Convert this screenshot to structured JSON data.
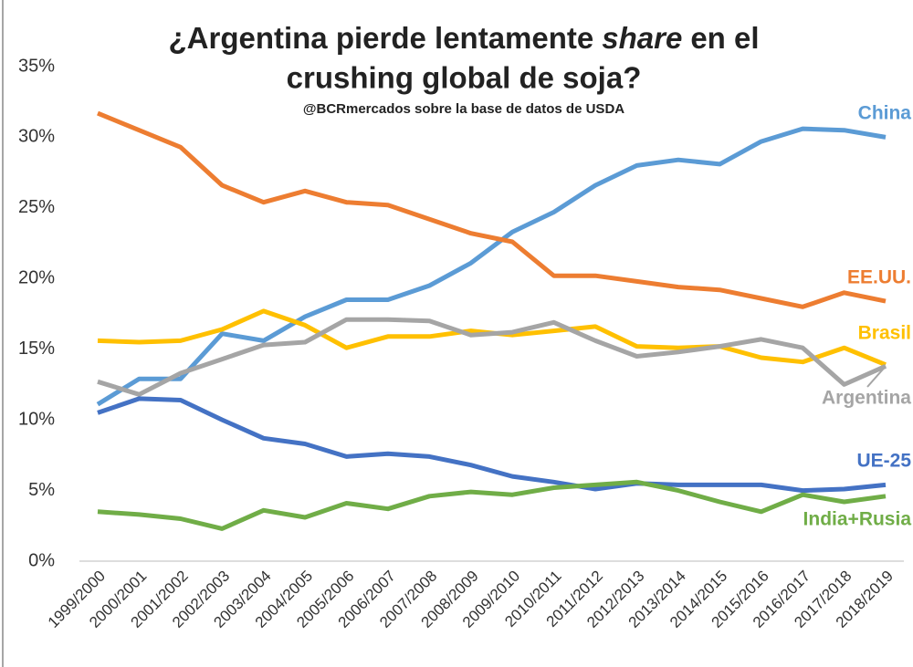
{
  "chart_data": {
    "type": "line",
    "title": [
      "¿Argentina pierde lentamente",
      "share",
      "en el",
      "crushing global de soja?"
    ],
    "subtitle": "@BCRmercados sobre la base de datos de USDA",
    "categories": [
      "1999/2000",
      "2000/2001",
      "2001/2002",
      "2002/2003",
      "2003/2004",
      "2004/2005",
      "2005/2006",
      "2006/2007",
      "2007/2008",
      "2008/2009",
      "2009/2010",
      "2010/2011",
      "2011/2012",
      "2012/2013",
      "2013/2014",
      "2014/2015",
      "2015/2016",
      "2016/2017",
      "2017/2018",
      "2018/2019"
    ],
    "series": [
      {
        "name": "China",
        "color": "#5b9bd5",
        "values": [
          11.1,
          12.9,
          12.9,
          16.1,
          15.6,
          17.3,
          18.5,
          18.5,
          19.5,
          21.1,
          23.3,
          24.7,
          26.6,
          28.0,
          28.4,
          28.1,
          29.7,
          30.6,
          30.5,
          30.0
        ]
      },
      {
        "name": "EE.UU.",
        "color": "#ed7d31",
        "values": [
          31.7,
          30.5,
          29.3,
          26.6,
          25.4,
          26.2,
          25.4,
          25.2,
          24.2,
          23.2,
          22.6,
          20.2,
          20.2,
          19.8,
          19.4,
          19.2,
          18.6,
          18.0,
          19.0,
          18.4
        ]
      },
      {
        "name": "Brasil",
        "color": "#ffc000",
        "values": [
          15.6,
          15.5,
          15.6,
          16.4,
          17.7,
          16.7,
          15.1,
          15.9,
          15.9,
          16.3,
          16.0,
          16.3,
          16.6,
          15.2,
          15.1,
          15.2,
          14.4,
          14.1,
          15.1,
          13.9
        ]
      },
      {
        "name": "Argentina",
        "color": "#a5a5a5",
        "values": [
          12.7,
          11.8,
          13.3,
          14.3,
          15.3,
          15.5,
          17.1,
          17.1,
          17.0,
          16.0,
          16.2,
          16.9,
          15.6,
          14.5,
          14.8,
          15.2,
          15.7,
          15.1,
          12.5,
          13.8
        ]
      },
      {
        "name": "UE-25",
        "color": "#4472c4",
        "values": [
          10.5,
          11.5,
          11.4,
          10.0,
          8.7,
          8.3,
          7.4,
          7.6,
          7.4,
          6.8,
          6.0,
          5.6,
          5.1,
          5.5,
          5.4,
          5.4,
          5.4,
          5.0,
          5.1,
          5.4
        ]
      },
      {
        "name": "India+Rusia",
        "color": "#70ad47",
        "values": [
          3.5,
          3.3,
          3.0,
          2.3,
          3.6,
          3.1,
          4.1,
          3.7,
          4.6,
          4.9,
          4.7,
          5.2,
          5.4,
          5.6,
          5.0,
          4.2,
          3.5,
          4.7,
          4.2,
          4.6
        ]
      }
    ],
    "ylim": [
      0,
      35
    ],
    "yticks": [
      {
        "value": 0,
        "label": "0%"
      },
      {
        "value": 5,
        "label": "5%"
      },
      {
        "value": 10,
        "label": "10%"
      },
      {
        "value": 15,
        "label": "15%"
      },
      {
        "value": 20,
        "label": "20%"
      },
      {
        "value": 25,
        "label": "25%"
      },
      {
        "value": 30,
        "label": "30%"
      },
      {
        "value": 35,
        "label": "35%"
      }
    ],
    "grid": false
  }
}
